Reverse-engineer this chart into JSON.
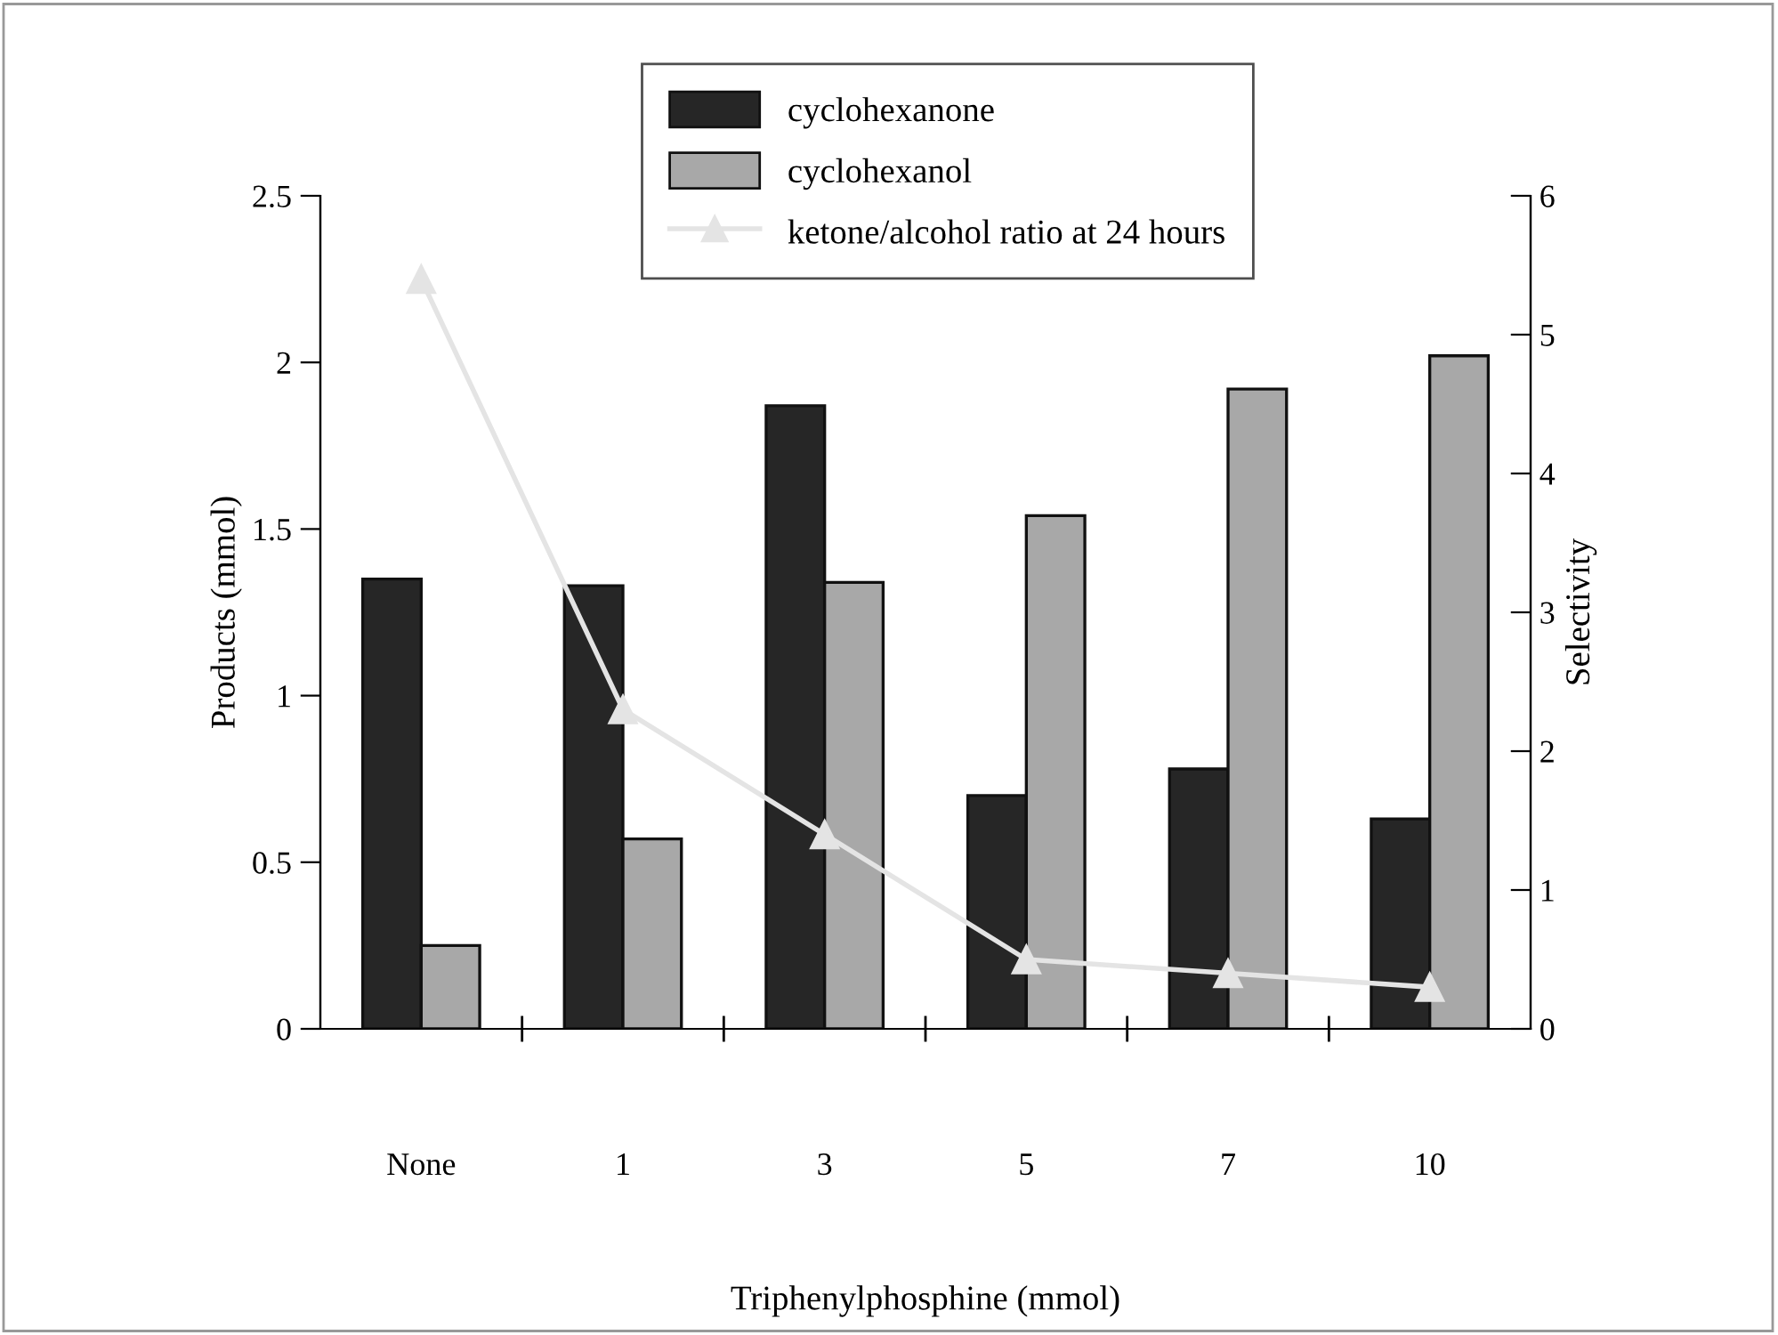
{
  "chart_data": {
    "type": "bar",
    "xlabel": "Triphenylphosphine (mmol)",
    "ylabel": "Products (mmol)",
    "y2label": "Selectivity",
    "categories": [
      "None",
      "1",
      "3",
      "5",
      "7",
      "10"
    ],
    "series": [
      {
        "name": "cyclohexanone",
        "color": "#262626",
        "values": [
          1.35,
          1.33,
          1.87,
          0.7,
          0.78,
          0.63
        ]
      },
      {
        "name": "cyclohexanol",
        "color": "#a8a8a8",
        "values": [
          0.25,
          0.57,
          1.34,
          1.54,
          1.92,
          2.02
        ]
      },
      {
        "name": "ketone/alcohol ratio at 24 hours",
        "type": "line",
        "axis": "y2",
        "color": "#e4e4e4",
        "marker": "triangle",
        "values": [
          5.4,
          2.3,
          1.4,
          0.5,
          0.4,
          0.3
        ]
      }
    ],
    "ylim": [
      0,
      2.5
    ],
    "yticks": [
      0,
      0.5,
      1,
      1.5,
      2,
      2.5
    ],
    "y2lim": [
      0,
      6
    ],
    "y2ticks": [
      0,
      1,
      2,
      3,
      4,
      5,
      6
    ],
    "grid": false,
    "legend": "top"
  }
}
